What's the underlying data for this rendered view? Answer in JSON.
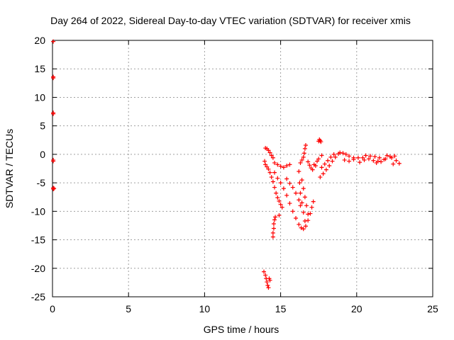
{
  "chart_data": {
    "type": "scatter",
    "title": "Day 264 of 2022, Sidereal Day-to-day VTEC variation (SDTVAR) for receiver xmis",
    "xlabel": "GPS time / hours",
    "ylabel": "SDTVAR / TECUs",
    "xlim": [
      0,
      25
    ],
    "ylim": [
      -25,
      20
    ],
    "xticks": [
      0,
      5,
      10,
      15,
      20,
      25
    ],
    "yticks": [
      20,
      15,
      10,
      5,
      0,
      -5,
      -10,
      -15,
      -20,
      -25
    ],
    "grid": true,
    "marker": "+",
    "color": "#ff0000",
    "series": [
      {
        "points": [
          [
            0.05,
            19.8
          ],
          [
            0.05,
            13.6
          ],
          [
            0.05,
            13.4
          ],
          [
            0.05,
            7.3
          ],
          [
            0.05,
            7.1
          ],
          [
            0.05,
            -1.0
          ],
          [
            0.05,
            -1.2
          ],
          [
            0.05,
            -5.9
          ],
          [
            0.05,
            -6.1
          ],
          [
            0.1,
            -6.0
          ],
          [
            13.9,
            -20.6
          ],
          [
            14.0,
            -21.2
          ],
          [
            14.05,
            -21.8
          ],
          [
            14.1,
            -22.4
          ],
          [
            14.15,
            -23.0
          ],
          [
            14.2,
            -23.4
          ],
          [
            14.3,
            -22.1
          ],
          [
            14.25,
            -21.8
          ],
          [
            14.5,
            -14.5
          ],
          [
            14.5,
            -13.8
          ],
          [
            14.55,
            -13.0
          ],
          [
            14.55,
            -12.2
          ],
          [
            14.6,
            -11.5
          ],
          [
            14.65,
            -11.0
          ],
          [
            14.9,
            -10.7
          ],
          [
            14.0,
            1.1
          ],
          [
            14.1,
            1.0
          ],
          [
            14.2,
            0.7
          ],
          [
            14.3,
            0.3
          ],
          [
            14.4,
            -0.2
          ],
          [
            14.5,
            -0.6
          ],
          [
            13.95,
            -1.2
          ],
          [
            14.0,
            -1.8
          ],
          [
            14.1,
            -2.2
          ],
          [
            14.2,
            -2.6
          ],
          [
            14.3,
            -3.2
          ],
          [
            14.4,
            -4.0
          ],
          [
            14.5,
            -4.8
          ],
          [
            14.6,
            -5.8
          ],
          [
            14.7,
            -6.8
          ],
          [
            14.8,
            -7.6
          ],
          [
            14.9,
            -8.2
          ],
          [
            15.0,
            -8.8
          ],
          [
            15.1,
            -9.3
          ],
          [
            14.6,
            -1.5
          ],
          [
            14.8,
            -1.8
          ],
          [
            15.0,
            -2.1
          ],
          [
            15.2,
            -2.3
          ],
          [
            15.4,
            -2.0
          ],
          [
            15.6,
            -1.8
          ],
          [
            14.6,
            -3.2
          ],
          [
            14.8,
            -4.2
          ],
          [
            15.0,
            -5.0
          ],
          [
            15.2,
            -6.0
          ],
          [
            15.4,
            -7.2
          ],
          [
            15.6,
            -8.6
          ],
          [
            15.8,
            -10.0
          ],
          [
            16.0,
            -11.2
          ],
          [
            16.2,
            -12.3
          ],
          [
            16.35,
            -12.9
          ],
          [
            16.5,
            -13.1
          ],
          [
            16.65,
            -12.6
          ],
          [
            16.8,
            -11.6
          ],
          [
            16.95,
            -10.4
          ],
          [
            17.05,
            -9.3
          ],
          [
            17.15,
            -8.3
          ],
          [
            15.4,
            -4.3
          ],
          [
            15.6,
            -5.1
          ],
          [
            15.8,
            -5.8
          ],
          [
            16.0,
            -6.8
          ],
          [
            16.2,
            -8.0
          ],
          [
            16.3,
            -9.0
          ],
          [
            16.2,
            -3.0
          ],
          [
            16.25,
            -5.0
          ],
          [
            16.3,
            -6.8
          ],
          [
            16.4,
            -8.5
          ],
          [
            16.5,
            -10.2
          ],
          [
            16.6,
            -11.7
          ],
          [
            16.4,
            -4.5
          ],
          [
            16.5,
            -6.0
          ],
          [
            16.6,
            -7.5
          ],
          [
            16.7,
            -9.0
          ],
          [
            16.8,
            -10.5
          ],
          [
            16.3,
            -1.5
          ],
          [
            16.4,
            -1.0
          ],
          [
            16.5,
            -0.5
          ],
          [
            16.55,
            0.2
          ],
          [
            16.6,
            1.0
          ],
          [
            16.65,
            1.6
          ],
          [
            16.8,
            -1.3
          ],
          [
            16.9,
            -1.9
          ],
          [
            17.0,
            -2.4
          ],
          [
            17.2,
            -1.8
          ],
          [
            17.4,
            -1.2
          ],
          [
            17.1,
            -2.7
          ],
          [
            17.3,
            -2.0
          ],
          [
            17.5,
            -0.8
          ],
          [
            17.7,
            -0.2
          ],
          [
            17.5,
            2.3
          ],
          [
            17.55,
            2.6
          ],
          [
            17.6,
            2.4
          ],
          [
            17.65,
            2.2
          ],
          [
            17.6,
            -4.0
          ],
          [
            17.8,
            -3.4
          ],
          [
            18.0,
            -2.7
          ],
          [
            18.2,
            -2.0
          ],
          [
            18.4,
            -1.2
          ],
          [
            18.6,
            -0.5
          ],
          [
            18.8,
            0.1
          ],
          [
            17.7,
            -2.3
          ],
          [
            17.9,
            -1.7
          ],
          [
            18.1,
            -1.1
          ],
          [
            18.3,
            -0.5
          ],
          [
            18.5,
            0.0
          ],
          [
            18.9,
            0.3
          ],
          [
            19.1,
            0.2
          ],
          [
            19.3,
            0.0
          ],
          [
            19.5,
            -0.3
          ],
          [
            19.8,
            -0.6
          ],
          [
            19.2,
            -1.0
          ],
          [
            19.5,
            -1.2
          ],
          [
            19.8,
            -0.9
          ],
          [
            20.1,
            -0.6
          ],
          [
            20.4,
            -0.6
          ],
          [
            20.2,
            -1.4
          ],
          [
            20.5,
            -1.0
          ],
          [
            20.8,
            -0.8
          ],
          [
            21.1,
            -1.1
          ],
          [
            21.4,
            -1.2
          ],
          [
            20.6,
            -0.2
          ],
          [
            20.9,
            -0.3
          ],
          [
            21.2,
            -0.4
          ],
          [
            21.5,
            -0.6
          ],
          [
            21.8,
            -0.9
          ],
          [
            21.3,
            -1.5
          ],
          [
            21.6,
            -1.3
          ],
          [
            21.9,
            -0.8
          ],
          [
            22.2,
            -0.4
          ],
          [
            22.5,
            -0.3
          ],
          [
            22.0,
            -0.2
          ],
          [
            22.3,
            -0.6
          ],
          [
            22.6,
            -1.1
          ],
          [
            22.8,
            -1.6
          ],
          [
            22.4,
            -1.7
          ]
        ]
      }
    ]
  }
}
